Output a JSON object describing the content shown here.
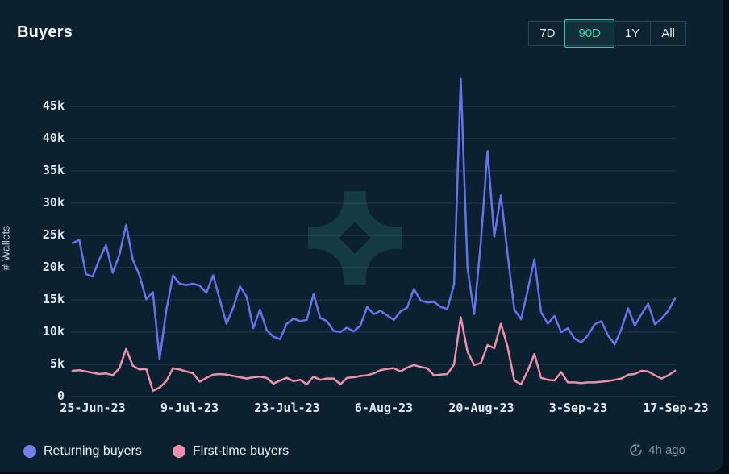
{
  "header": {
    "title": "Buyers"
  },
  "time_range": {
    "options": [
      "7D",
      "90D",
      "1Y",
      "All"
    ],
    "selected": "90D"
  },
  "legend": [
    {
      "label": "Returning buyers",
      "color": "#7480ee"
    },
    {
      "label": "First-time buyers",
      "color": "#ee8fae"
    }
  ],
  "updated": {
    "label": "4h ago",
    "icon": "clock-history-icon"
  },
  "colors": {
    "card_background": "#0c2130",
    "gridline": "rgba(125,175,205,0.16)",
    "accent_teal": "#41d0a5",
    "returning_line": "#6673ec",
    "first_time_line": "#ee8fac",
    "watermark": "rgba(62,190,170,0.16)"
  },
  "chart_data": {
    "type": "line",
    "title": "Buyers",
    "xlabel": "",
    "ylabel": "# Wallets",
    "ylim": [
      0,
      50000
    ],
    "grid": "horizontal",
    "legend_position": "bottom-left",
    "yticks": [
      0,
      5000,
      10000,
      15000,
      20000,
      25000,
      30000,
      35000,
      40000,
      45000
    ],
    "ytick_labels": [
      "0",
      "5k",
      "10k",
      "15k",
      "20k",
      "25k",
      "30k",
      "35k",
      "40k",
      "45k"
    ],
    "xtick_labels": [
      "25-Jun-23",
      "9-Jul-23",
      "23-Jul-23",
      "6-Aug-23",
      "20-Aug-23",
      "3-Sep-23",
      "17-Sep-23"
    ],
    "x_range_days": 91,
    "series": [
      {
        "name": "Returning buyers",
        "color": "#6673ec",
        "values": [
          23800,
          24300,
          19000,
          18600,
          21300,
          23500,
          19200,
          22000,
          26600,
          21200,
          18800,
          15100,
          16200,
          5800,
          13400,
          18800,
          17500,
          17300,
          17500,
          17200,
          16100,
          18800,
          15000,
          11300,
          13800,
          17100,
          15500,
          10600,
          13500,
          10300,
          9300,
          8900,
          11300,
          12100,
          11700,
          11900,
          15900,
          12200,
          11700,
          10200,
          10000,
          10700,
          10100,
          11000,
          13900,
          12800,
          13300,
          12600,
          11900,
          13200,
          13800,
          16700,
          14900,
          14600,
          14700,
          13900,
          13600,
          17400,
          49300,
          20000,
          12800,
          24000,
          38100,
          24800,
          31200,
          22000,
          13500,
          12000,
          16500,
          21300,
          13100,
          11300,
          12500,
          10000,
          10600,
          9000,
          8400,
          9500,
          11200,
          11700,
          9500,
          8100,
          10500,
          13700,
          11000,
          12800,
          14400,
          11200,
          12100,
          13300,
          15200
        ]
      },
      {
        "name": "First-time buyers",
        "color": "#ee8fac",
        "values": [
          4000,
          4100,
          3900,
          3700,
          3500,
          3600,
          3300,
          4400,
          7400,
          4800,
          4200,
          4300,
          900,
          1400,
          2400,
          4400,
          4200,
          3900,
          3600,
          2300,
          2900,
          3400,
          3500,
          3400,
          3200,
          3000,
          2800,
          3000,
          3100,
          2900,
          2000,
          2500,
          2900,
          2400,
          2600,
          1900,
          3100,
          2600,
          2800,
          2800,
          1900,
          2900,
          3000,
          3200,
          3300,
          3600,
          4100,
          4300,
          4400,
          3900,
          4500,
          4900,
          4600,
          4400,
          3300,
          3400,
          3500,
          5000,
          12300,
          7000,
          4900,
          5200,
          8000,
          7500,
          11300,
          7700,
          2500,
          1900,
          4000,
          6600,
          2900,
          2600,
          2500,
          3800,
          2200,
          2200,
          2100,
          2200,
          2200,
          2300,
          2400,
          2600,
          2800,
          3400,
          3500,
          4000,
          3900,
          3300,
          2800,
          3300,
          4000
        ]
      }
    ]
  }
}
